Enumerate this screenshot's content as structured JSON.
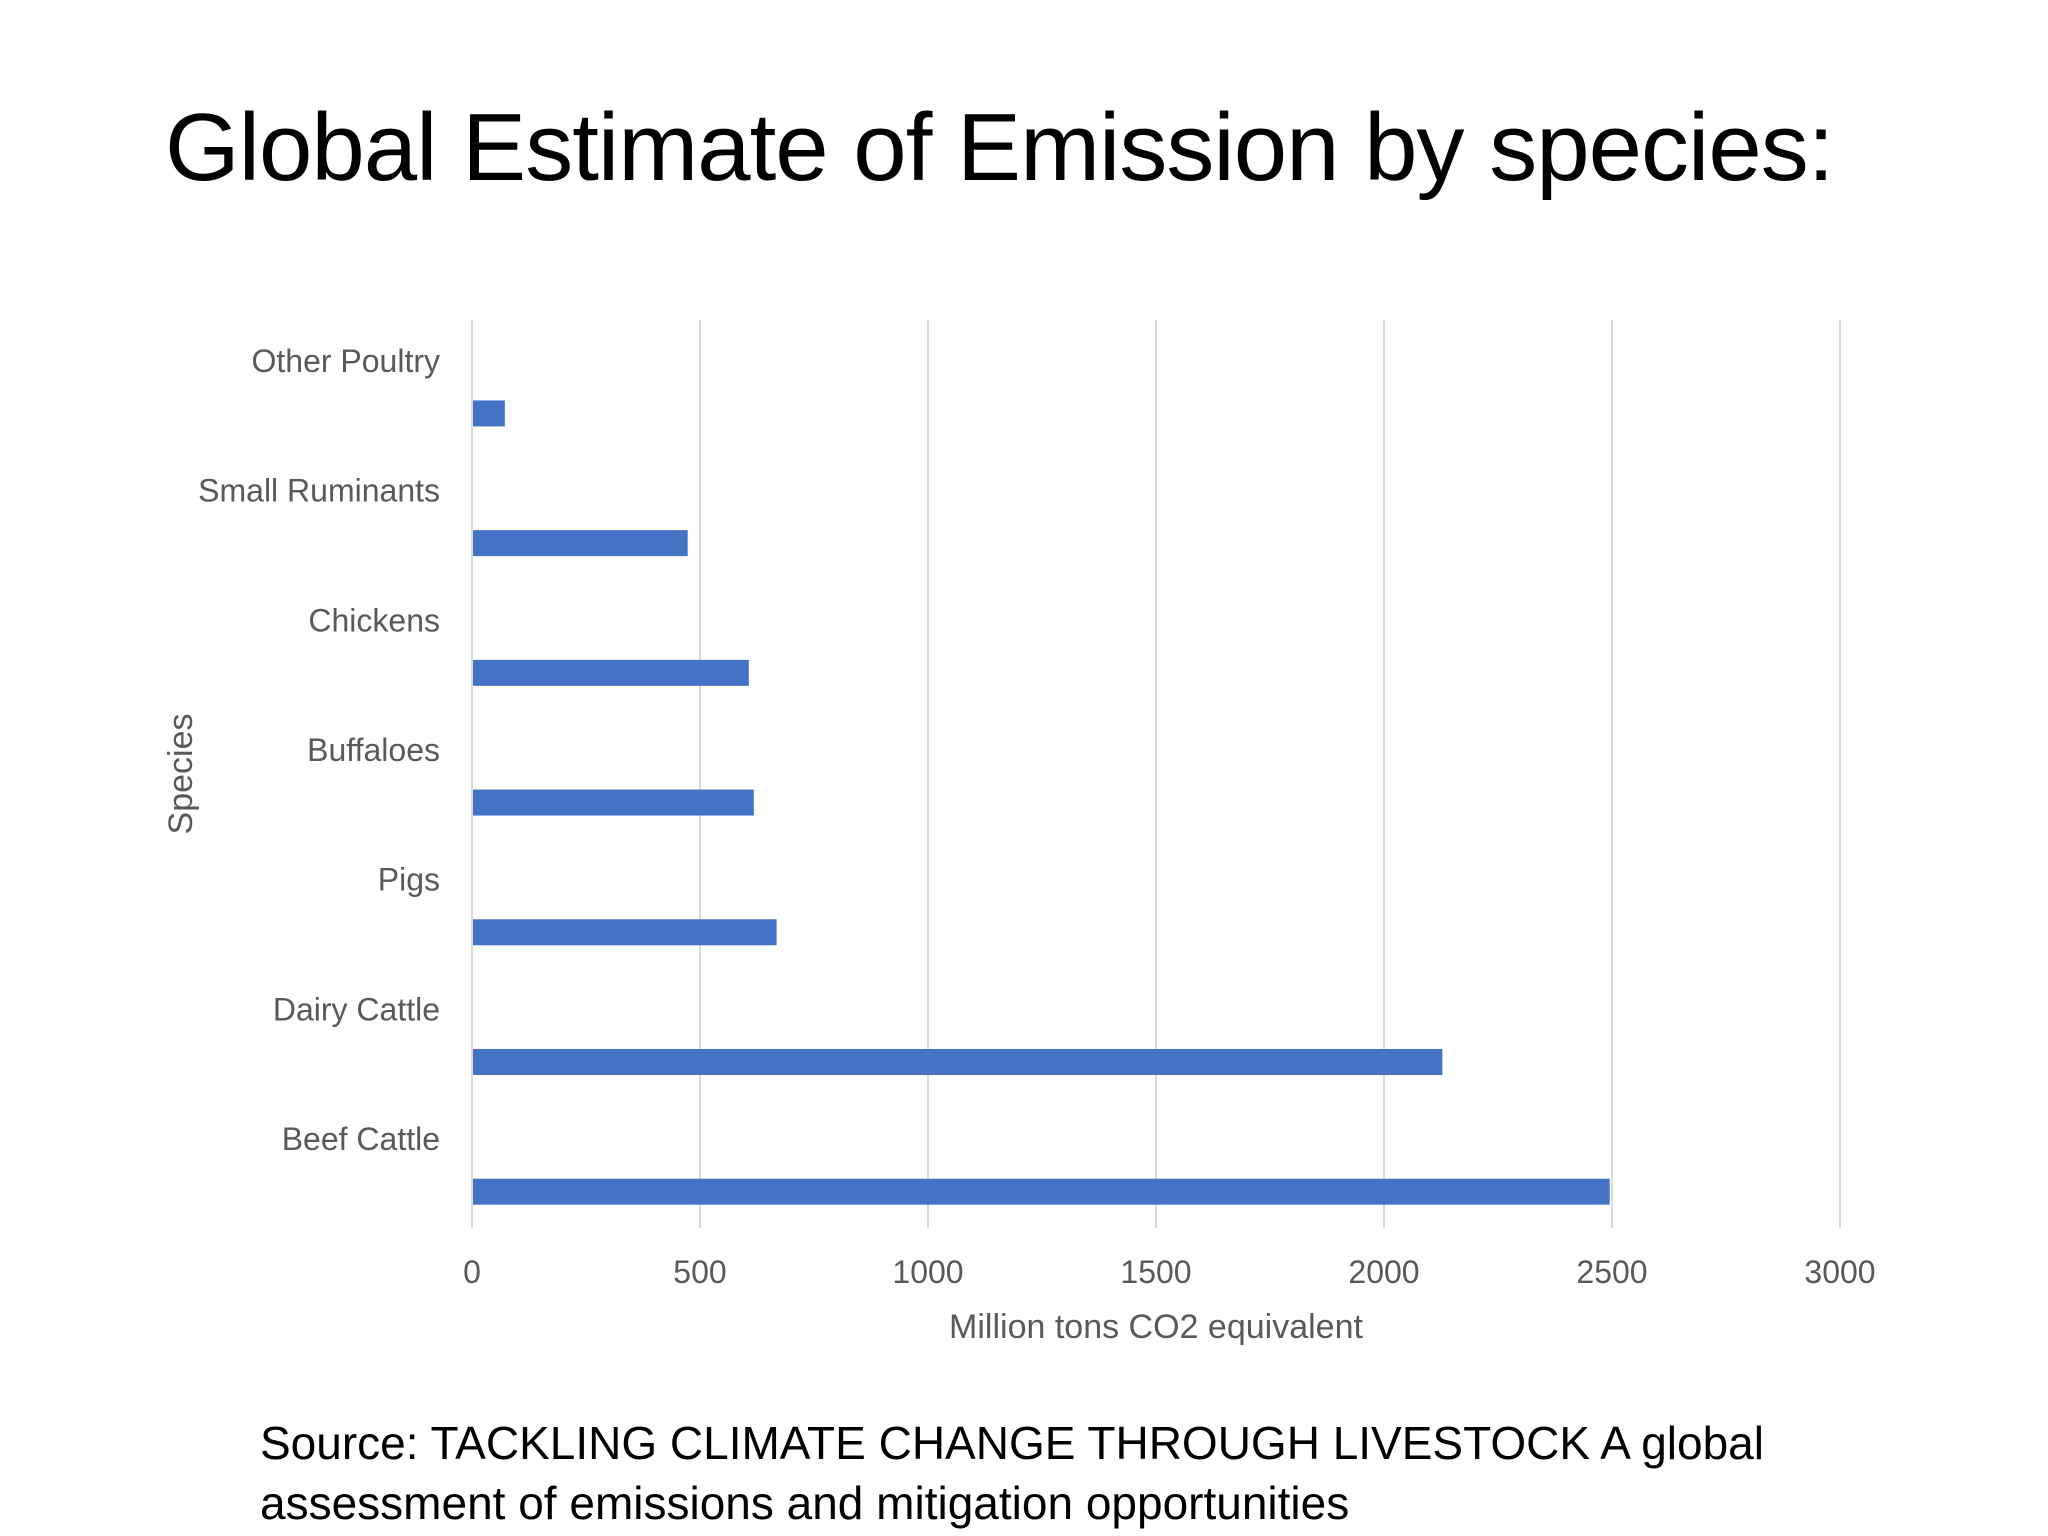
{
  "slide": {
    "title": "Global Estimate of Emission by species:",
    "source_line1": "Source: TACKLING CLIMATE CHANGE THROUGH LIVESTOCK A global",
    "source_line2": "assessment of emissions and mitigation opportunities"
  },
  "colors": {
    "bar": "#4472C4",
    "grid": "#D9D9D9",
    "text": "#595959"
  },
  "chart_data": {
    "type": "bar",
    "orientation": "horizontal",
    "categories": [
      "Other Poultry",
      "Small Ruminants",
      "Chickens",
      "Buffaloes",
      "Pigs",
      "Dairy Cattle",
      "Beef Cattle"
    ],
    "values": [
      72,
      473,
      607,
      618,
      668,
      2128,
      2495
    ],
    "xlabel": "Million tons CO2 equivalent",
    "ylabel": "Species",
    "xlim": [
      0,
      3000
    ],
    "xticks": [
      "0",
      "500",
      "1000",
      "1500",
      "2000",
      "2500",
      "3000"
    ],
    "grid": true,
    "legend": "none"
  }
}
